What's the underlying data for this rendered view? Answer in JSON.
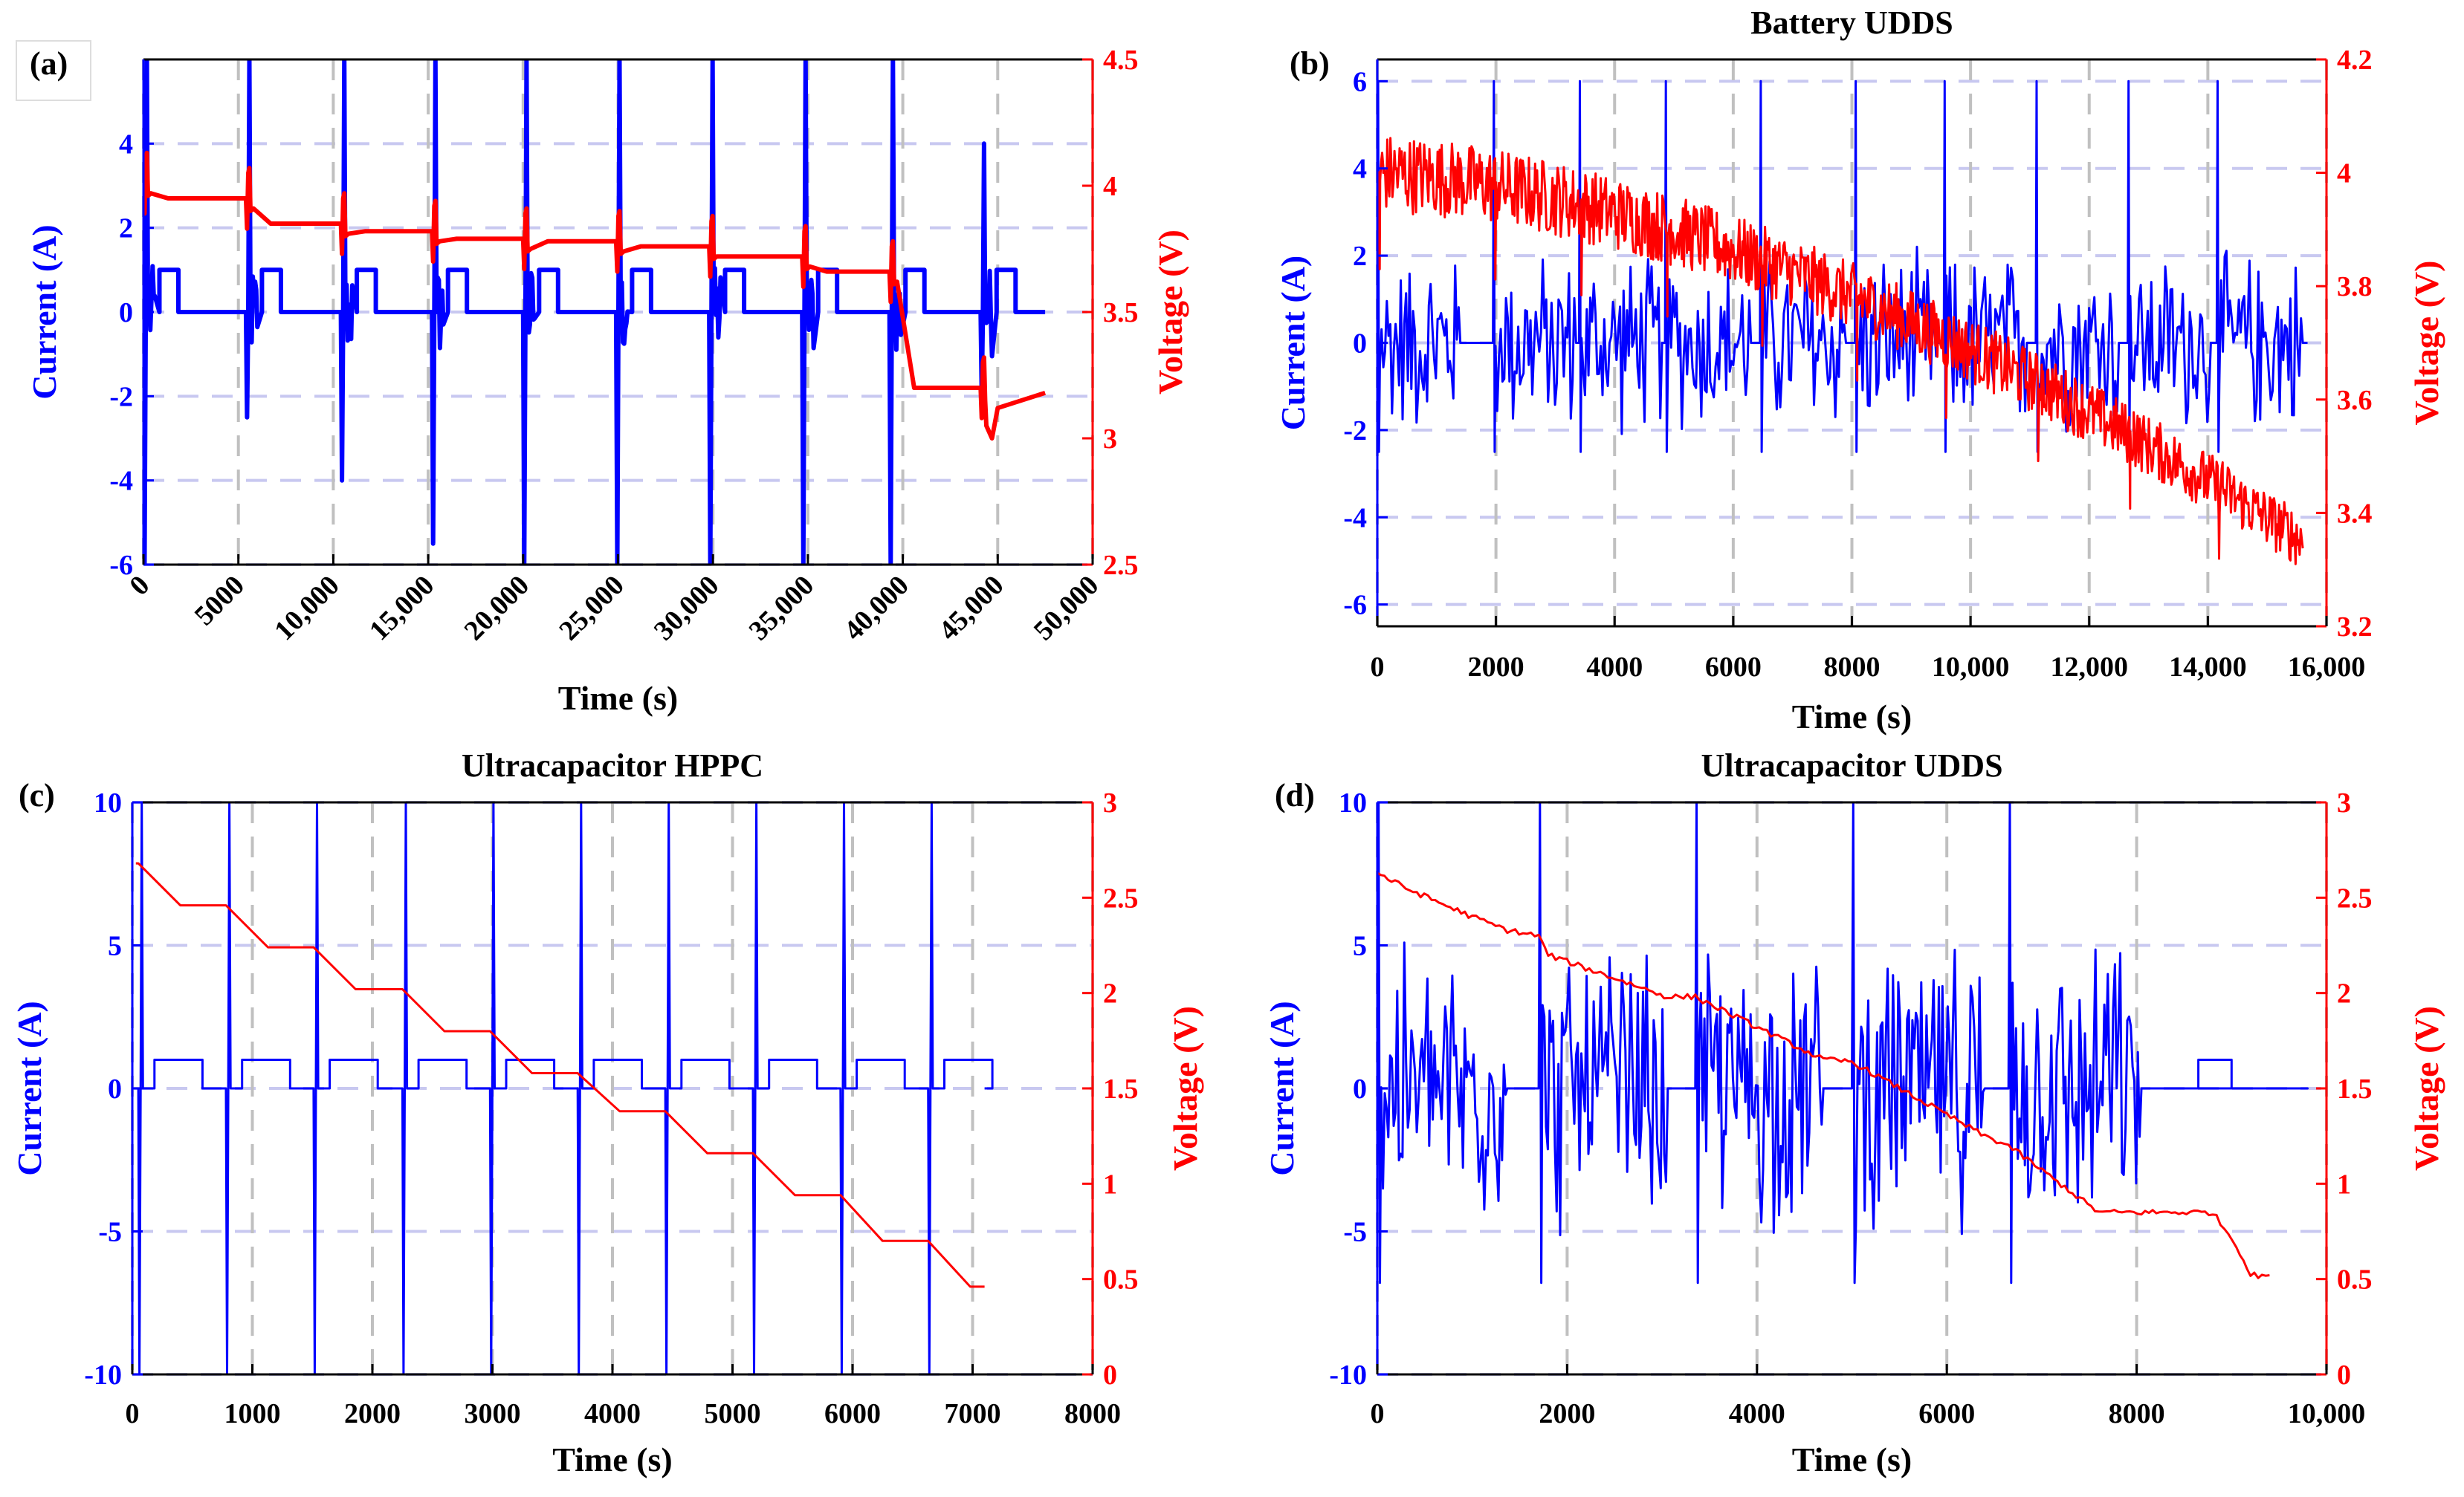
{
  "colors": {
    "current": "#0000ff",
    "voltage": "#ff0000",
    "grid": "#c8c8f0",
    "vgrid": "#c0c0c0",
    "axis": "#000000"
  },
  "chart_data": [
    {
      "panel": "(a)",
      "type": "line",
      "title": "",
      "xlabel": "Time (s)",
      "ylabel_left": "Current (A)",
      "ylabel_right": "Voltage (V)",
      "xlim": [
        0,
        50000
      ],
      "ylim_left": [
        -6,
        6
      ],
      "ylim_right": [
        2.5,
        4.5
      ],
      "xticks": [
        0,
        5000,
        10000,
        15000,
        20000,
        25000,
        30000,
        35000,
        40000,
        45000,
        50000
      ],
      "xticklabels": [
        "0",
        "5000",
        "10,000",
        "15,000",
        "20,000",
        "25,000",
        "30,000",
        "35,000",
        "40,000",
        "45,000",
        "50,000"
      ],
      "yticks_left": [
        -6,
        -4,
        -2,
        0,
        2,
        4
      ],
      "yticklabels_left": [
        "-6",
        "-4",
        "-2",
        "0",
        "2",
        "4"
      ],
      "yticks_right": [
        2.5,
        3,
        3.5,
        4,
        4.5
      ],
      "yticklabels_right": [
        "2.5",
        "3",
        "3.5",
        "4",
        "4.5"
      ],
      "rotate_xticks": true,
      "grid_left": true,
      "grid_x_dashed": true,
      "kind": "hppc",
      "pulse_times": [
        0,
        5400,
        10400,
        15200,
        20000,
        24900,
        29800,
        34700,
        39300,
        44100
      ],
      "discharge_peaks": [
        -6,
        -2.5,
        -4,
        -5.5,
        -6,
        -6,
        -6,
        -6,
        -6,
        -2
      ],
      "charge_peaks": [
        6,
        6,
        6,
        6,
        6,
        6,
        6,
        6,
        6,
        4
      ],
      "step_current": 1,
      "step_duration": 1000,
      "voltage_levels": [
        4.01,
        3.95,
        3.85,
        3.82,
        3.79,
        3.78,
        3.76,
        3.72,
        3.66,
        3.2
      ],
      "voltage_end_time": 47500,
      "series": [
        {
          "name": "Current",
          "axis": "left"
        },
        {
          "name": "Voltage",
          "axis": "right"
        }
      ]
    },
    {
      "panel": "(b)",
      "type": "line",
      "title": "Battery UDDS",
      "xlabel": "Time (s)",
      "ylabel_left": "Current (A)",
      "ylabel_right": "Voltage (V)",
      "xlim": [
        0,
        16000
      ],
      "ylim_left": [
        -6.5,
        6.5
      ],
      "ylim_right": [
        3.2,
        4.2
      ],
      "xticks": [
        0,
        2000,
        4000,
        6000,
        8000,
        10000,
        12000,
        14000,
        16000
      ],
      "xticklabels": [
        "0",
        "2000",
        "4000",
        "6000",
        "8000",
        "10,000",
        "12,000",
        "14,000",
        "16,000"
      ],
      "yticks_left": [
        -6,
        -4,
        -2,
        0,
        2,
        4,
        6
      ],
      "yticklabels_left": [
        "-6",
        "-4",
        "-2",
        "0",
        "2",
        "4",
        "6"
      ],
      "yticks_right": [
        3.2,
        3.4,
        3.6,
        3.8,
        4,
        4.2
      ],
      "yticklabels_right": [
        "3.2",
        "3.4",
        "3.6",
        "3.8",
        "4",
        "4.2"
      ],
      "rotate_xticks": false,
      "grid_left": true,
      "grid_x_dashed": true,
      "kind": "udds",
      "segments": [
        [
          0,
          1400
        ],
        [
          1950,
          3350
        ],
        [
          3400,
          4800
        ],
        [
          4850,
          6300
        ],
        [
          6450,
          7900
        ],
        [
          8050,
          9450
        ],
        [
          9550,
          10950
        ],
        [
          11100,
          12500
        ],
        [
          12650,
          14050
        ],
        [
          14150,
          15600
        ]
      ],
      "current_amp": 2.3,
      "spike_pos": 6,
      "spike_neg": -2.5,
      "voltage_start": 4.0,
      "voltage_end": 3.4,
      "voltage_noise": 0.05,
      "series": [
        {
          "name": "Current",
          "axis": "left"
        },
        {
          "name": "Voltage",
          "axis": "right"
        }
      ]
    },
    {
      "panel": "(c)",
      "type": "line",
      "title": "Ultracapacitor HPPC",
      "xlabel": "Time (s)",
      "ylabel_left": "Current (A)",
      "ylabel_right": "Voltage (V)",
      "xlim": [
        0,
        8000
      ],
      "ylim_left": [
        -10,
        10
      ],
      "ylim_right": [
        0,
        3
      ],
      "xticks": [
        0,
        1000,
        2000,
        3000,
        4000,
        5000,
        6000,
        7000,
        8000
      ],
      "xticklabels": [
        "0",
        "1000",
        "2000",
        "3000",
        "4000",
        "5000",
        "6000",
        "7000",
        "8000"
      ],
      "yticks_left": [
        -10,
        -5,
        0,
        5,
        10
      ],
      "yticklabels_left": [
        "-10",
        "-5",
        "0",
        "5",
        "10"
      ],
      "yticks_right": [
        0,
        0.5,
        1,
        1.5,
        2,
        2.5,
        3
      ],
      "yticklabels_right": [
        "0",
        "0.5",
        "1",
        "1.5",
        "2",
        "2.5",
        "3"
      ],
      "rotate_xticks": false,
      "grid_left": true,
      "grid_x_dashed": true,
      "kind": "uchppc",
      "pulse_times": [
        50,
        780,
        1510,
        2250,
        2980,
        3710,
        4440,
        5170,
        5900,
        6630
      ],
      "step_current": 1,
      "step_duration": 400,
      "voltage_levels": [
        2.68,
        2.46,
        2.24,
        2.02,
        1.8,
        1.58,
        1.38,
        1.16,
        0.94,
        0.7,
        0.46
      ],
      "voltage_end_time": 7100,
      "series": [
        {
          "name": "Current",
          "axis": "left"
        },
        {
          "name": "Voltage",
          "axis": "right"
        }
      ]
    },
    {
      "panel": "(d)",
      "type": "line",
      "title": "Ultracapacitor UDDS",
      "xlabel": "Time (s)",
      "ylabel_left": "Current (A)",
      "ylabel_right": "Voltage (V)",
      "xlim": [
        0,
        10000
      ],
      "ylim_left": [
        -10,
        10
      ],
      "ylim_right": [
        0,
        3
      ],
      "xticks": [
        0,
        2000,
        4000,
        6000,
        8000,
        10000
      ],
      "xticklabels": [
        "0",
        "2000",
        "4000",
        "6000",
        "8000",
        "10,000"
      ],
      "yticks_left": [
        -10,
        -5,
        0,
        5,
        10
      ],
      "yticklabels_left": [
        "-10",
        "-5",
        "0",
        "5",
        "10"
      ],
      "yticks_right": [
        0,
        0.5,
        1,
        1.5,
        2,
        2.5,
        3
      ],
      "yticklabels_right": [
        "0",
        "0.5",
        "1",
        "1.5",
        "2",
        "2.5",
        "3"
      ],
      "rotate_xticks": false,
      "grid_left": true,
      "grid_x_dashed": true,
      "kind": "ucudds",
      "segments": [
        [
          0,
          1370
        ],
        [
          1700,
          3060
        ],
        [
          3350,
          4700
        ],
        [
          5000,
          6400
        ],
        [
          6650,
          8050
        ]
      ],
      "current_amp": 5.5,
      "spike_pos": 10,
      "spike_neg": -6.8,
      "voltage_points": [
        [
          0,
          2.63
        ],
        [
          300,
          2.55
        ],
        [
          1000,
          2.4
        ],
        [
          1370,
          2.33
        ],
        [
          1700,
          2.3
        ],
        [
          1800,
          2.2
        ],
        [
          3060,
          1.98
        ],
        [
          3350,
          1.98
        ],
        [
          4700,
          1.65
        ],
        [
          5000,
          1.64
        ],
        [
          6400,
          1.25
        ],
        [
          6650,
          1.2
        ],
        [
          7600,
          0.85
        ],
        [
          8050,
          0.85
        ],
        [
          8800,
          0.85
        ],
        [
          9050,
          0.68
        ],
        [
          9200,
          0.52
        ],
        [
          9400,
          0.52
        ]
      ],
      "step_at": [
        8650,
        9000,
        1
      ],
      "series": [
        {
          "name": "Current",
          "axis": "left"
        },
        {
          "name": "Voltage",
          "axis": "right"
        }
      ]
    }
  ]
}
